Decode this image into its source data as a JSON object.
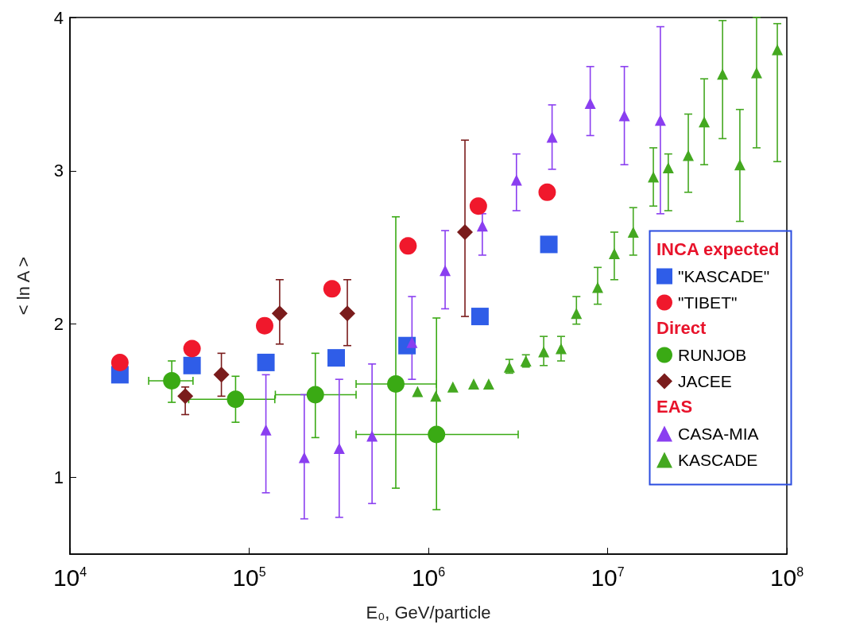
{
  "chart_data": {
    "type": "scatter",
    "xlabel": "E₀, GeV/particle",
    "ylabel": "< ln A >",
    "legend_title": "INCA expected",
    "annotations": [
      "Direct",
      "EAS"
    ],
    "log": "x",
    "xlim": [
      10000,
      100000000
    ],
    "xticks": [
      {
        "value": 10000,
        "label": "10$^{4}$"
      },
      {
        "value": 100000,
        "label": "10$^{5}$"
      },
      {
        "value": 1000000,
        "label": "10$^{6}$"
      },
      {
        "value": 10000000,
        "label": "10$^{7}$"
      },
      {
        "value": 100000000,
        "label": "10$^{8}$"
      }
    ],
    "ylim": [
      0.5,
      4
    ],
    "yticks": [
      1,
      2,
      3,
      4
    ],
    "grid": false,
    "legend": "right",
    "series": [
      {
        "name": "\"KASCADE\"",
        "color": "#2f5de8",
        "marker": "square",
        "x": [
          19000,
          48000,
          124000,
          306000,
          760000,
          1940000,
          4700000
        ],
        "values": [
          1.67,
          1.73,
          1.75,
          1.78,
          1.86,
          2.05,
          2.52
        ]
      },
      {
        "name": "\"TIBET\"",
        "color": "#f0182c",
        "marker": "circle",
        "x": [
          19000,
          48000,
          122000,
          290000,
          770000,
          1900000,
          4600000
        ],
        "values": [
          1.75,
          1.84,
          1.99,
          2.23,
          2.51,
          2.77,
          2.86
        ]
      },
      {
        "name": "RUNJOB",
        "color": "#3aaa14",
        "marker": "circle",
        "x": [
          37000,
          84000,
          234000,
          658000,
          1110000
        ],
        "values": [
          1.63,
          1.51,
          1.54,
          1.61,
          1.28
        ],
        "errors": [
          [
            1.49,
            1.76
          ],
          [
            1.36,
            1.66
          ],
          [
            1.26,
            1.81
          ],
          [
            0.93,
            2.7
          ],
          [
            0.79,
            2.04
          ]
        ],
        "xerrors": [
          [
            27500,
            48600
          ],
          [
            46000,
            139000
          ],
          [
            140000,
            395000
          ],
          [
            395000,
            1110000
          ],
          [
            395000,
            3170000
          ]
        ]
      },
      {
        "name": "JACEE",
        "color": "#7a1c1c",
        "marker": "diamond",
        "x": [
          44000,
          70000,
          148000,
          353000,
          1600000
        ],
        "values": [
          1.53,
          1.67,
          2.07,
          2.07,
          2.6
        ],
        "errors": [
          [
            1.41,
            1.59
          ],
          [
            1.53,
            1.81
          ],
          [
            1.87,
            2.29
          ],
          [
            1.86,
            2.29
          ],
          [
            2.05,
            3.2
          ]
        ]
      },
      {
        "name": "CASA-MIA",
        "color": "#8a3ef0",
        "marker": "triangle",
        "x": [
          124000,
          203000,
          318000,
          485000,
          810000,
          1240000,
          2000000,
          3100000,
          4900000,
          8000000,
          12400000,
          19700000
        ],
        "values": [
          1.31,
          1.13,
          1.19,
          1.27,
          1.88,
          2.35,
          2.64,
          2.94,
          3.22,
          3.44,
          3.36,
          3.33
        ],
        "errors": [
          [
            0.9,
            1.67
          ],
          [
            0.73,
            1.54
          ],
          [
            0.74,
            1.64
          ],
          [
            0.83,
            1.74
          ],
          [
            1.64,
            2.18
          ],
          [
            2.1,
            2.61
          ],
          [
            2.45,
            2.72
          ],
          [
            2.74,
            3.11
          ],
          [
            3.01,
            3.43
          ],
          [
            3.23,
            3.68
          ],
          [
            3.04,
            3.68
          ],
          [
            2.72,
            3.94
          ]
        ]
      },
      {
        "name": "KASCADE",
        "color": "#44a820",
        "marker": "triangle",
        "x": [
          870000,
          1100000,
          1370000,
          1790000,
          2170000,
          2830000,
          3500000,
          4400000,
          5500000,
          6700000,
          8800000,
          10900000,
          13900000,
          18000000,
          21800000,
          28200000,
          34600000,
          43800000,
          54700000,
          67800000,
          88500000
        ],
        "values": [
          1.56,
          1.53,
          1.59,
          1.61,
          1.61,
          1.72,
          1.76,
          1.82,
          1.84,
          2.07,
          2.24,
          2.46,
          2.6,
          2.96,
          3.02,
          3.1,
          3.32,
          3.63,
          3.04,
          3.64,
          3.79
        ],
        "errors": [
          null,
          null,
          null,
          null,
          null,
          [
            1.68,
            1.77
          ],
          [
            1.72,
            1.8
          ],
          [
            1.73,
            1.92
          ],
          [
            1.76,
            1.92
          ],
          [
            2.0,
            2.18
          ],
          [
            2.13,
            2.37
          ],
          [
            2.29,
            2.6
          ],
          [
            2.45,
            2.76
          ],
          [
            2.77,
            3.15
          ],
          [
            2.74,
            3.11
          ],
          [
            2.86,
            3.37
          ],
          [
            3.04,
            3.6
          ],
          [
            3.21,
            3.98
          ],
          [
            2.67,
            3.4
          ],
          [
            3.15,
            4.0
          ],
          [
            3.06,
            3.96
          ]
        ]
      }
    ]
  }
}
